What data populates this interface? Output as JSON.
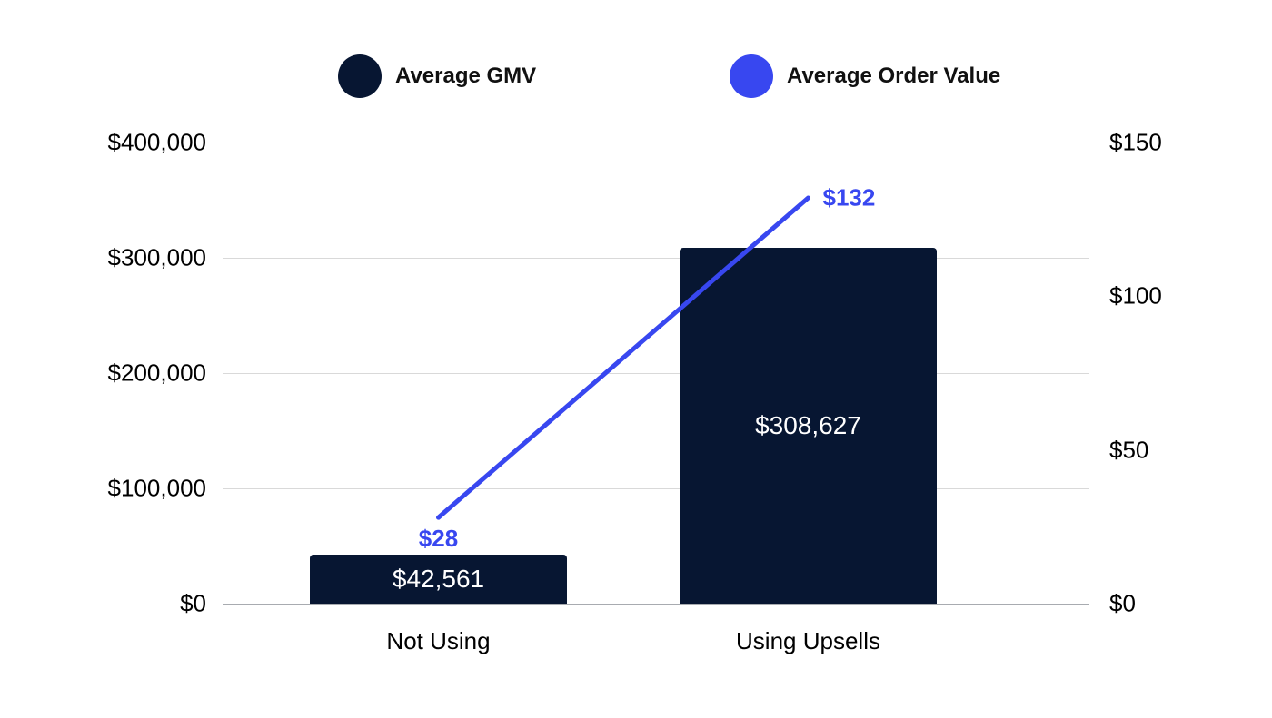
{
  "chart_data": {
    "type": "bar",
    "subtype": "combo-bar-line-dual-axis",
    "title": "",
    "categories": [
      "Not Using",
      "Using Upsells"
    ],
    "series": [
      {
        "name": "Average GMV",
        "type": "bar",
        "axis": "left",
        "values": [
          42561,
          308627
        ],
        "data_labels": [
          "$42,561",
          "$308,627"
        ],
        "color": "#071632"
      },
      {
        "name": "Average Order Value",
        "type": "line",
        "axis": "right",
        "values": [
          28,
          132
        ],
        "data_labels": [
          "$28",
          "$132"
        ],
        "color": "#3847f0"
      }
    ],
    "left_axis": {
      "min": 0,
      "max": 400000,
      "tick_labels_top_to_bottom": [
        "$400,000",
        "$300,000",
        "$200,000",
        "$100,000",
        "$0"
      ]
    },
    "right_axis": {
      "min": 0,
      "max": 150,
      "tick_labels_top_to_bottom": [
        "$150",
        "$100",
        "$50",
        "$0"
      ]
    },
    "grid": "horizontal",
    "legend_position": "top",
    "colors": {
      "background": "#ffffff",
      "bar": "#071632",
      "line": "#3847f0",
      "gridline": "#d9d9d9",
      "baseline": "#a8abb0",
      "tick_text": "#000000",
      "bar_label_text": "#ffffff"
    }
  },
  "legend": {
    "items": [
      {
        "label": "Average GMV",
        "color": "#071632"
      },
      {
        "label": "Average Order Value",
        "color": "#3847f0"
      }
    ]
  }
}
